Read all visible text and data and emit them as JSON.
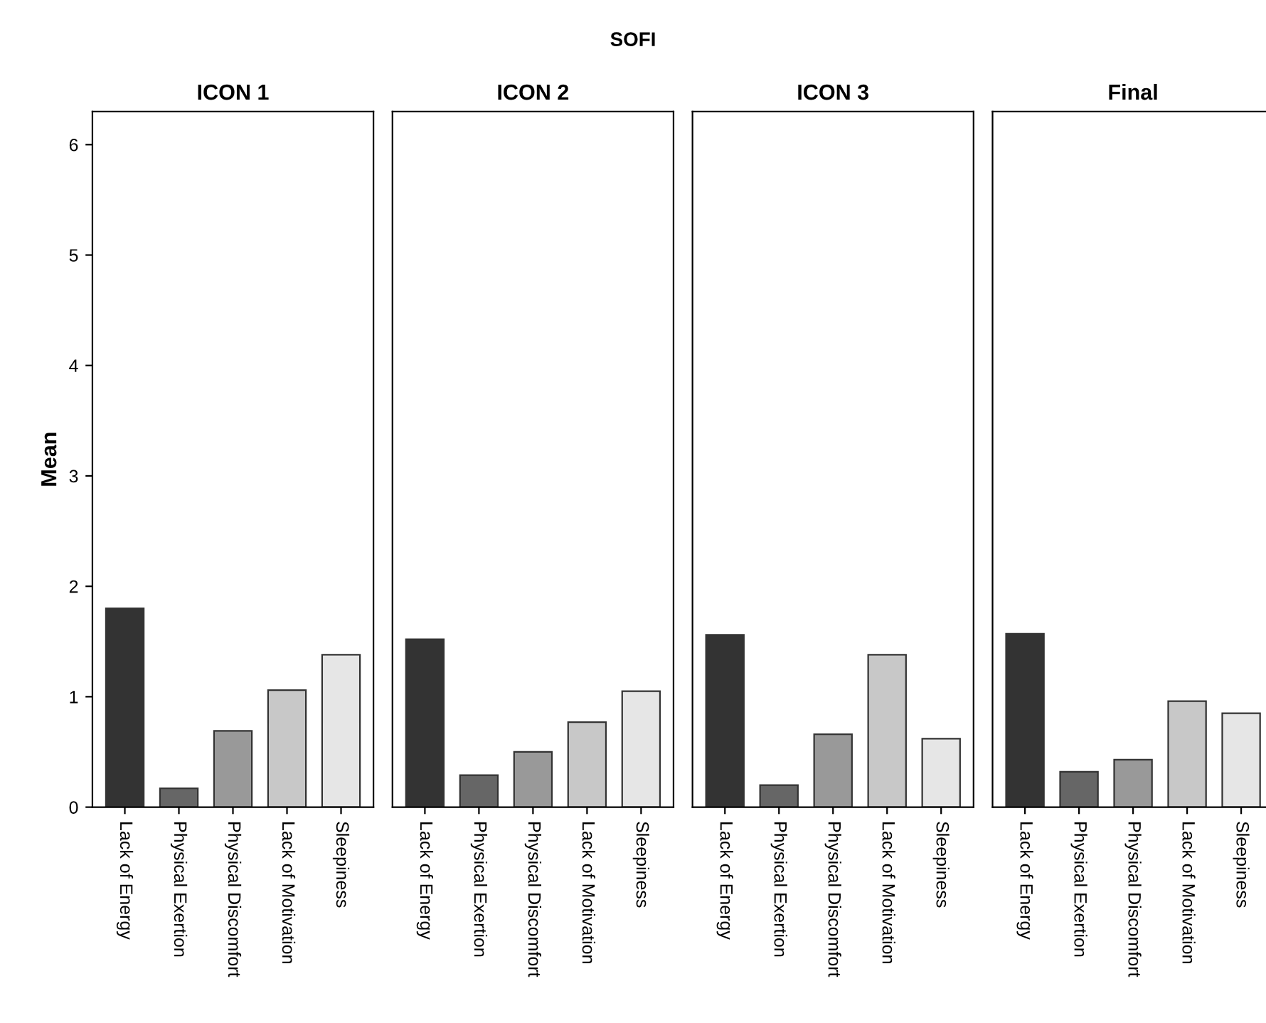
{
  "chart_data": [
    {
      "type": "bar",
      "title": "ICON 1",
      "ylabel": "Mean",
      "annotations": [
        "SOFI"
      ],
      "categories": [
        "Lack of Energy",
        "Physical Exertion",
        "Physical Discomfort",
        "Lack of Motivation",
        "Sleepiness"
      ],
      "values": [
        1.8,
        0.17,
        0.69,
        1.06,
        1.38
      ],
      "colors": [
        "#333333",
        "#666666",
        "#999999",
        "#c8c8c8",
        "#e6e6e6"
      ],
      "ylim": [
        0,
        6.3
      ],
      "yticks": [
        0,
        1,
        2,
        3,
        4,
        5,
        6
      ]
    },
    {
      "type": "bar",
      "title": "ICON 2",
      "categories": [
        "Lack of Energy",
        "Physical Exertion",
        "Physical Discomfort",
        "Lack of Motivation",
        "Sleepiness"
      ],
      "values": [
        1.52,
        0.29,
        0.5,
        0.77,
        1.05
      ],
      "colors": [
        "#333333",
        "#666666",
        "#999999",
        "#c8c8c8",
        "#e6e6e6"
      ],
      "ylim": [
        0,
        6.3
      ],
      "tick_labels": "x"
    },
    {
      "type": "bar",
      "title": "ICON 3",
      "categories": [
        "Lack of Energy",
        "Physical Exertion",
        "Physical Discomfort",
        "Lack of Motivation",
        "Sleepiness"
      ],
      "values": [
        1.56,
        0.2,
        0.66,
        1.38,
        0.62
      ],
      "colors": [
        "#333333",
        "#666666",
        "#999999",
        "#c8c8c8",
        "#e6e6e6"
      ],
      "ylim": [
        0,
        6.3
      ],
      "tick_labels": "x"
    },
    {
      "type": "bar",
      "title": "Final",
      "categories": [
        "Lack of Energy",
        "Physical Exertion",
        "Physical Discomfort",
        "Lack of Motivation",
        "Sleepiness"
      ],
      "values": [
        1.57,
        0.32,
        0.43,
        0.96,
        0.85
      ],
      "colors": [
        "#333333",
        "#666666",
        "#999999",
        "#c8c8c8",
        "#e6e6e6"
      ],
      "ylim": [
        0,
        6.3
      ],
      "tick_labels": "x"
    }
  ]
}
